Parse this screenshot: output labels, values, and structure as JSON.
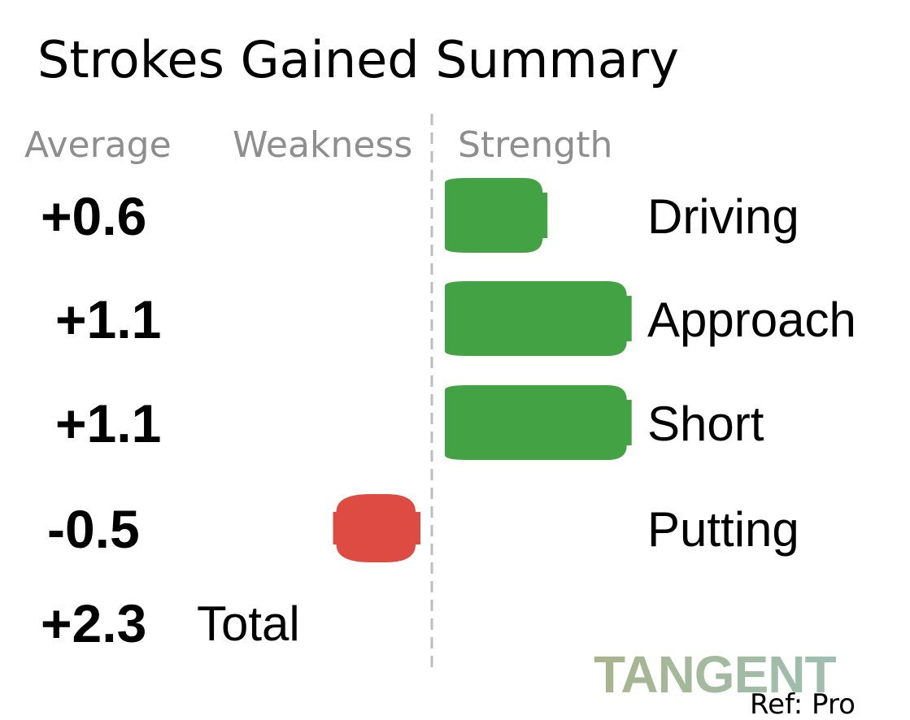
{
  "chart_data": {
    "type": "bar",
    "title": "Strokes Gained Summary",
    "headers": {
      "average": "Average",
      "weakness": "Weakness",
      "strength": "Strength"
    },
    "categories": [
      "Driving",
      "Approach",
      "Short",
      "Putting"
    ],
    "values": [
      0.6,
      1.1,
      1.1,
      -0.5
    ],
    "value_labels": [
      "+0.6",
      "+1.1",
      "+1.1",
      "-0.5"
    ],
    "total": {
      "label": "Total",
      "value": 2.3,
      "value_label": "+2.3"
    },
    "positive_color": "#43a243",
    "negative_color": "#de4b42",
    "xlim": [
      -0.5,
      1.1
    ],
    "orientation": "horizontal",
    "grid": false
  },
  "brand": {
    "logo_text": "TANGENT",
    "ref": "Ref: Pro",
    "logo_color_left": "#a8b48c",
    "logo_color_right": "#9fbfb2"
  }
}
